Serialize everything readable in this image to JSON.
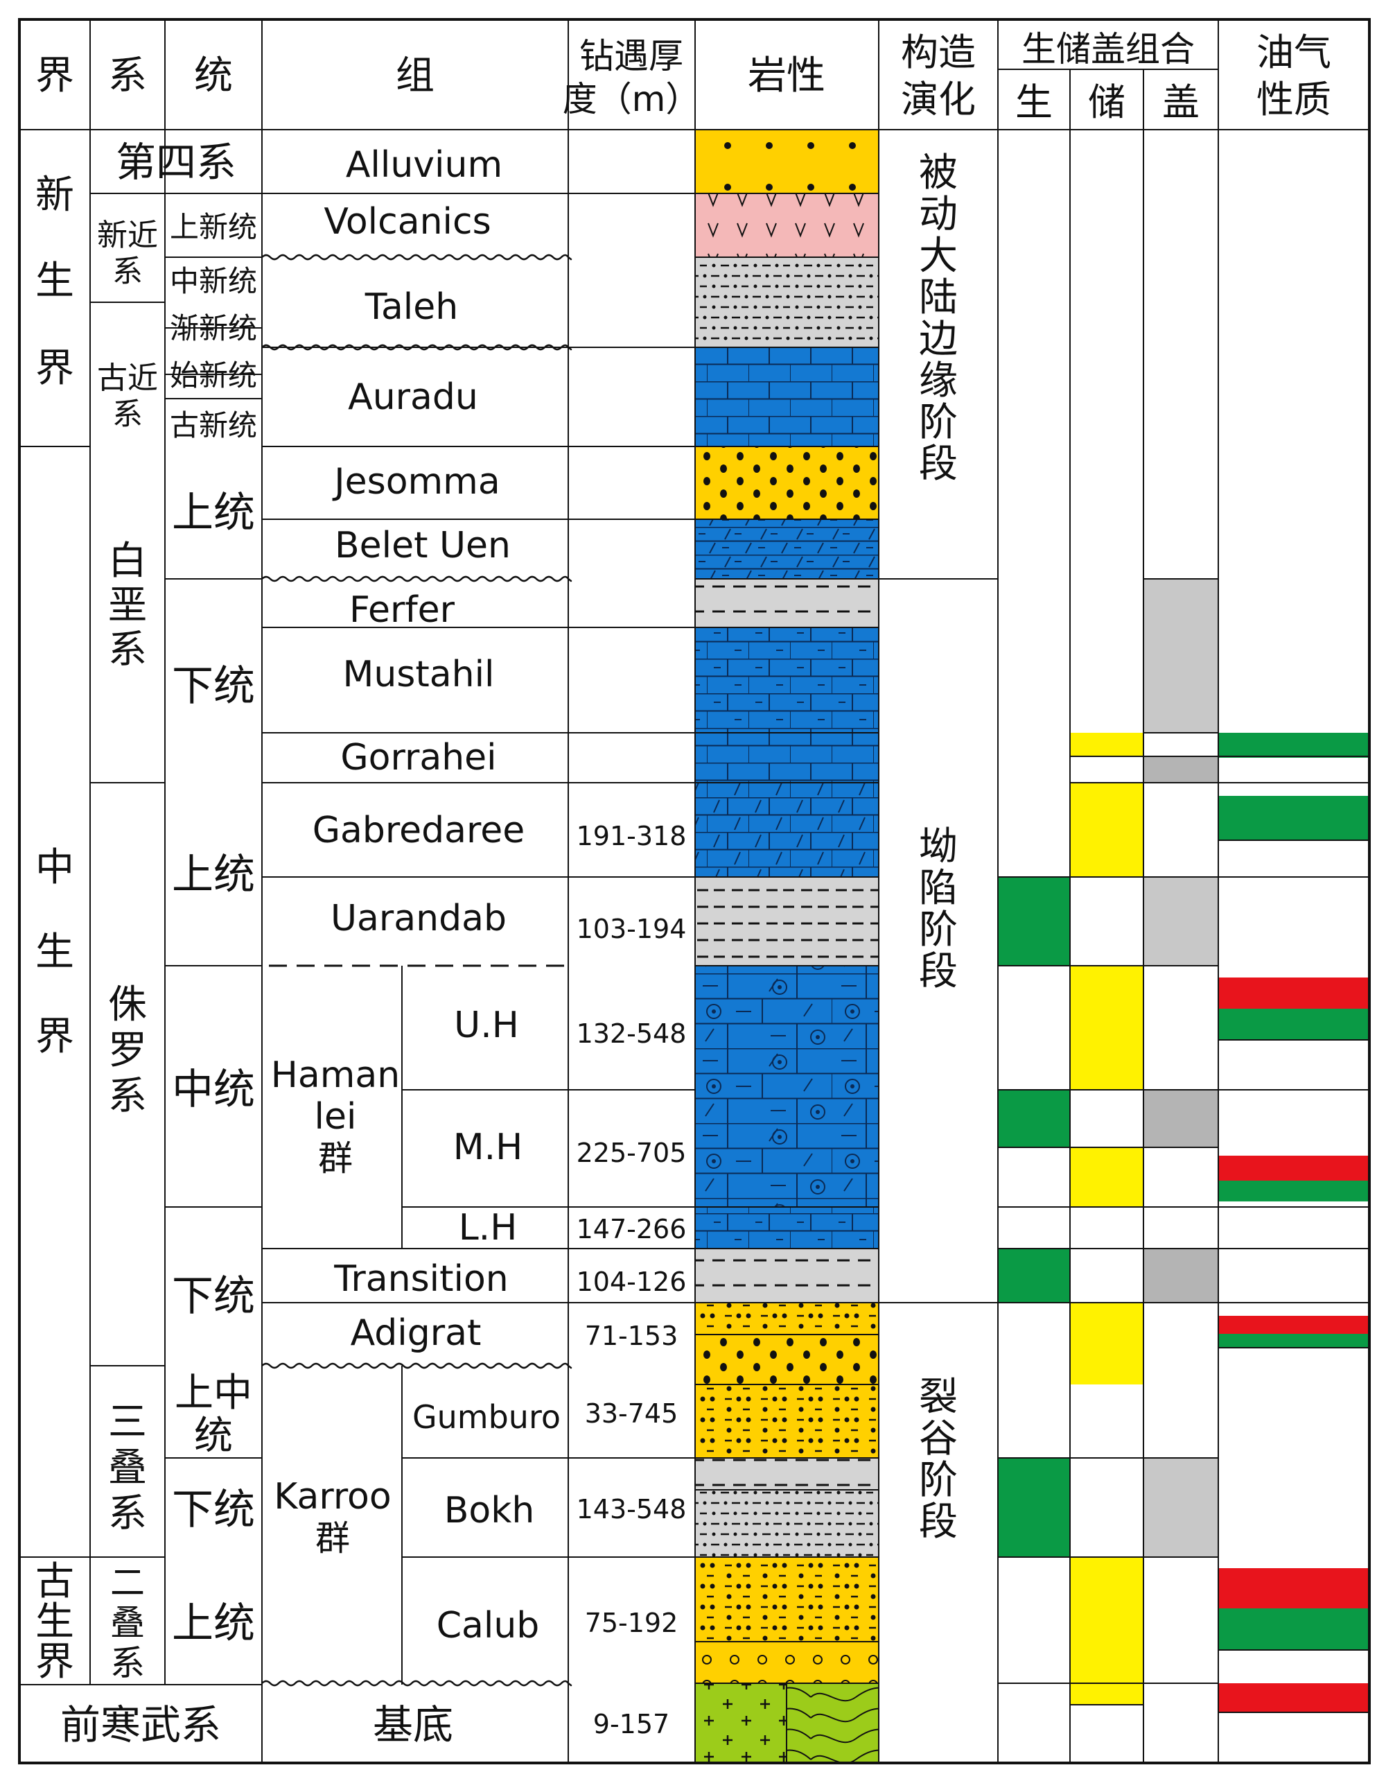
{
  "header": {
    "jie": "界",
    "xi": "系",
    "tong": "统",
    "zu": "组",
    "thickness_1": "钻遇厚",
    "thickness_2": "度（m）",
    "lithology": "岩性",
    "tectonic_1": "构造",
    "tectonic_2": "演化",
    "combo": "生储盖组合",
    "source": "生",
    "reservoir": "储",
    "cap": "盖",
    "oilgas_1": "油气",
    "oilgas_2": "性质"
  },
  "eras": [
    {
      "id": "cenozoic",
      "chars": [
        "新",
        "生",
        "界"
      ]
    },
    {
      "id": "mesozoic",
      "chars": [
        "中",
        "生",
        "界"
      ]
    },
    {
      "id": "paleozoic",
      "chars": [
        "古",
        "生",
        "界"
      ]
    }
  ],
  "systems": [
    {
      "id": "quaternary",
      "label": "第四系"
    },
    {
      "id": "neogene",
      "chars": [
        "新近",
        "系"
      ]
    },
    {
      "id": "paleogene",
      "chars": [
        "古近",
        "系"
      ]
    },
    {
      "id": "cretaceous",
      "chars": [
        "白",
        "垩",
        "系"
      ]
    },
    {
      "id": "jurassic",
      "chars": [
        "侏",
        "罗",
        "系"
      ]
    },
    {
      "id": "triassic",
      "chars": [
        "三",
        "叠",
        "系"
      ]
    },
    {
      "id": "permian",
      "chars": [
        "二",
        "叠",
        "系"
      ]
    },
    {
      "id": "precambrian",
      "label": "前寒武系"
    }
  ],
  "series": [
    {
      "id": "pliocene",
      "label": "上新统"
    },
    {
      "id": "miocene",
      "label": "中新统"
    },
    {
      "id": "oligocene",
      "label": "渐新统"
    },
    {
      "id": "eocene",
      "label": "始新统"
    },
    {
      "id": "paleocene",
      "label": "古新统"
    },
    {
      "id": "k-upper",
      "label": "上统"
    },
    {
      "id": "k-lower",
      "label": "下统"
    },
    {
      "id": "j-upper",
      "label": "上统"
    },
    {
      "id": "j-middle",
      "label": "中统"
    },
    {
      "id": "j-lower",
      "label": "下统"
    },
    {
      "id": "t-uppermid",
      "chars": [
        "上中",
        "统"
      ]
    },
    {
      "id": "t-lower",
      "label": "下统"
    },
    {
      "id": "p-upper",
      "label": "上统"
    }
  ],
  "formations": [
    {
      "id": "alluvium",
      "label": "Alluvium",
      "thickness": ""
    },
    {
      "id": "volcanics",
      "label": "Volcanics",
      "thickness": ""
    },
    {
      "id": "taleh",
      "label": "Taleh",
      "thickness": ""
    },
    {
      "id": "auradu",
      "label": "Auradu",
      "thickness": ""
    },
    {
      "id": "jesomma",
      "label": "Jesomma",
      "thickness": ""
    },
    {
      "id": "belet-uen",
      "label": "Belet Uen",
      "thickness": ""
    },
    {
      "id": "ferfer",
      "label": "Ferfer",
      "thickness": ""
    },
    {
      "id": "mustahil",
      "label": "Mustahil",
      "thickness": ""
    },
    {
      "id": "gorrahei",
      "label": "Gorrahei",
      "thickness": ""
    },
    {
      "id": "gabredaree",
      "label": "Gabredaree",
      "thickness": "191-318"
    },
    {
      "id": "uarandab",
      "label": "Uarandab",
      "thickness": "103-194"
    },
    {
      "id": "uh",
      "label": "U.H",
      "thickness": "132-548"
    },
    {
      "id": "mh",
      "label": "M.H",
      "thickness": "225-705"
    },
    {
      "id": "lh",
      "label": "L.H",
      "thickness": "147-266"
    },
    {
      "id": "transition",
      "label": "Transition",
      "thickness": "104-126"
    },
    {
      "id": "adigrat",
      "label": "Adigrat",
      "thickness": "71-153"
    },
    {
      "id": "gumburo",
      "label": "Gumburo",
      "thickness": "33-745"
    },
    {
      "id": "bokh",
      "label": "Bokh",
      "thickness": "143-548"
    },
    {
      "id": "calub",
      "label": "Calub",
      "thickness": "75-192"
    },
    {
      "id": "basement",
      "label": "基底",
      "thickness": "9-157"
    }
  ],
  "groups": [
    {
      "id": "hamanlei",
      "lines": [
        "Haman",
        "lei"
      ],
      "suffix": "群"
    },
    {
      "id": "karroo",
      "lines": [
        "Karroo"
      ],
      "suffix": "群"
    }
  ],
  "tectonic_stages": [
    {
      "id": "passive-margin",
      "label": "被动大陆边缘阶段"
    },
    {
      "id": "sag",
      "label": "坳陷阶段"
    },
    {
      "id": "rift",
      "label": "裂谷阶段"
    }
  ],
  "colors": {
    "source_rock": "#0a9a45",
    "reservoir": "#fff200",
    "cap_rock": "#c8c8c8",
    "cap_rock_dark": "#b4b4b4",
    "oil": "#e8141c",
    "gas": "#0a9a45",
    "limestone": "#1479d2",
    "sandstone": "#ffd000",
    "mudstone": "#d4d4d4",
    "volcanic": "#f4b8b8",
    "basement": "#9ccc1a"
  }
}
